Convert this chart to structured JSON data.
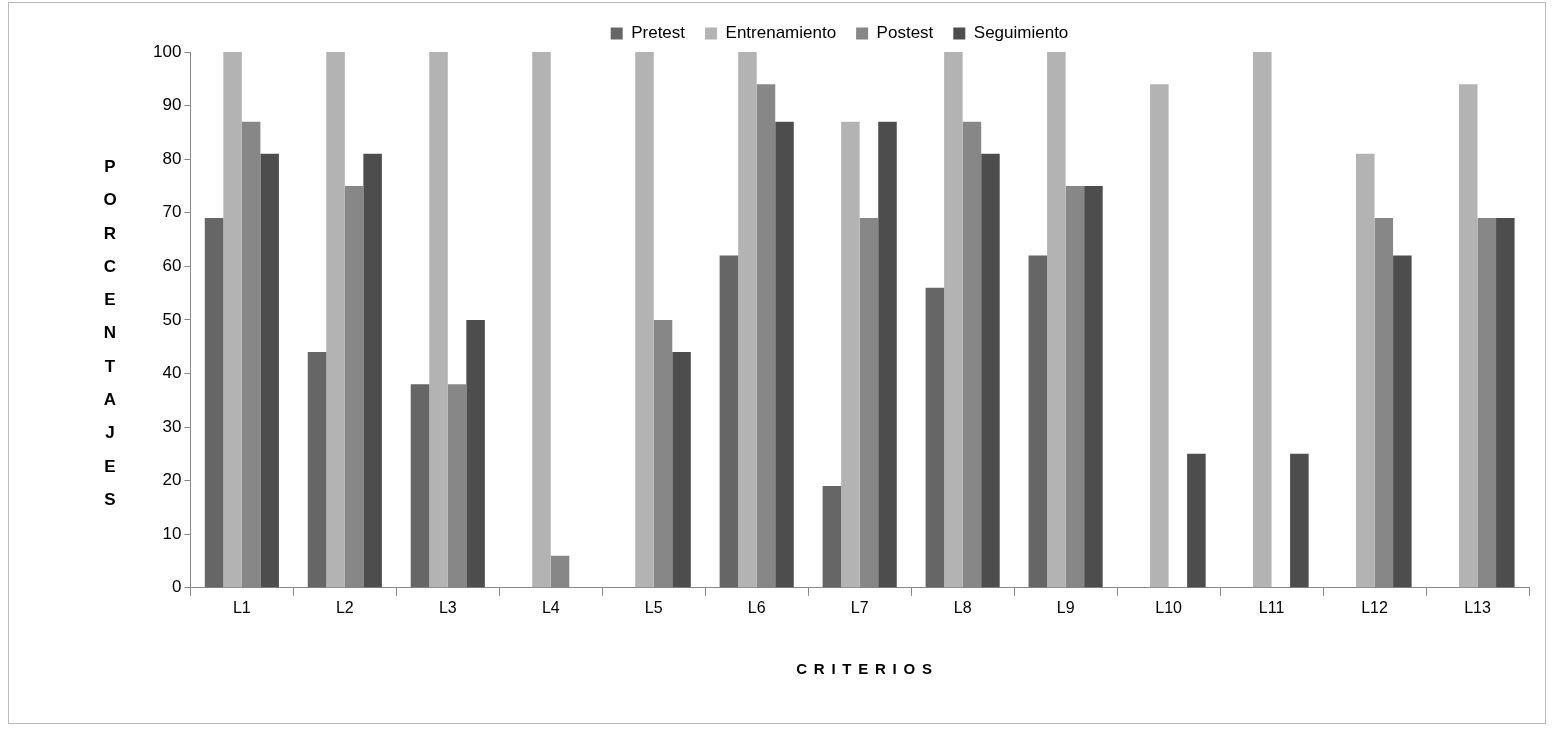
{
  "chart_data": {
    "type": "bar",
    "xlabel": "CRITERIOS",
    "ylabel": "PORCENTAJES",
    "categories": [
      "L1",
      "L2",
      "L3",
      "L4",
      "L5",
      "L6",
      "L7",
      "L8",
      "L9",
      "L10",
      "L11",
      "L12",
      "L13"
    ],
    "series": [
      {
        "name": "Pretest",
        "color": "#666666",
        "values": [
          69,
          44,
          38,
          0,
          0,
          62,
          19,
          56,
          62,
          0,
          0,
          0,
          0
        ]
      },
      {
        "name": "Entrenamiento",
        "color": "#b3b3b3",
        "values": [
          100,
          100,
          100,
          100,
          100,
          100,
          87,
          100,
          100,
          94,
          100,
          81,
          94
        ]
      },
      {
        "name": "Postest",
        "color": "#878787",
        "values": [
          87,
          75,
          38,
          6,
          50,
          94,
          69,
          87,
          75,
          0,
          0,
          69,
          69
        ]
      },
      {
        "name": "Seguimiento",
        "color": "#4d4d4d",
        "values": [
          81,
          81,
          50,
          0,
          44,
          87,
          87,
          81,
          75,
          25,
          25,
          62,
          69
        ]
      }
    ],
    "ylim": [
      0,
      100
    ],
    "yticks": [
      0,
      10,
      20,
      30,
      40,
      50,
      60,
      70,
      80,
      90,
      100
    ],
    "grid": false,
    "legend": "top"
  }
}
